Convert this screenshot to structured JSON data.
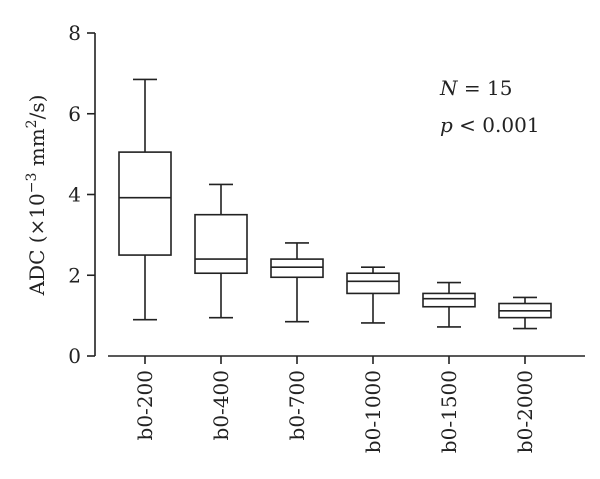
{
  "chart_data": {
    "type": "boxplot",
    "ylabel_main": "ADC (×10",
    "ylabel_exp": "−3",
    "ylabel_unit_pre": " mm",
    "ylabel_unit_exp": "2",
    "ylabel_unit_post": "/s)",
    "ylim": [
      0,
      8
    ],
    "yticks": [
      "0",
      "2",
      "4",
      "6",
      "8"
    ],
    "categories": [
      "b0-200",
      "b0-400",
      "b0-700",
      "b0-1000",
      "b0-1500",
      "b0-2000"
    ],
    "boxes": [
      {
        "min": 0.9,
        "q1": 2.5,
        "median": 3.92,
        "q3": 5.05,
        "max": 6.85
      },
      {
        "min": 0.95,
        "q1": 2.05,
        "median": 2.4,
        "q3": 3.5,
        "max": 4.25
      },
      {
        "min": 0.85,
        "q1": 1.95,
        "median": 2.2,
        "q3": 2.4,
        "max": 2.8
      },
      {
        "min": 0.82,
        "q1": 1.55,
        "median": 1.85,
        "q3": 2.05,
        "max": 2.2
      },
      {
        "min": 0.72,
        "q1": 1.22,
        "median": 1.42,
        "q3": 1.55,
        "max": 1.82
      },
      {
        "min": 0.68,
        "q1": 0.95,
        "median": 1.12,
        "q3": 1.3,
        "max": 1.45
      }
    ],
    "annotations": {
      "n_var": "N",
      "n_rest": " = 15",
      "p_var": "p",
      "p_rest": " < 0.001"
    }
  }
}
